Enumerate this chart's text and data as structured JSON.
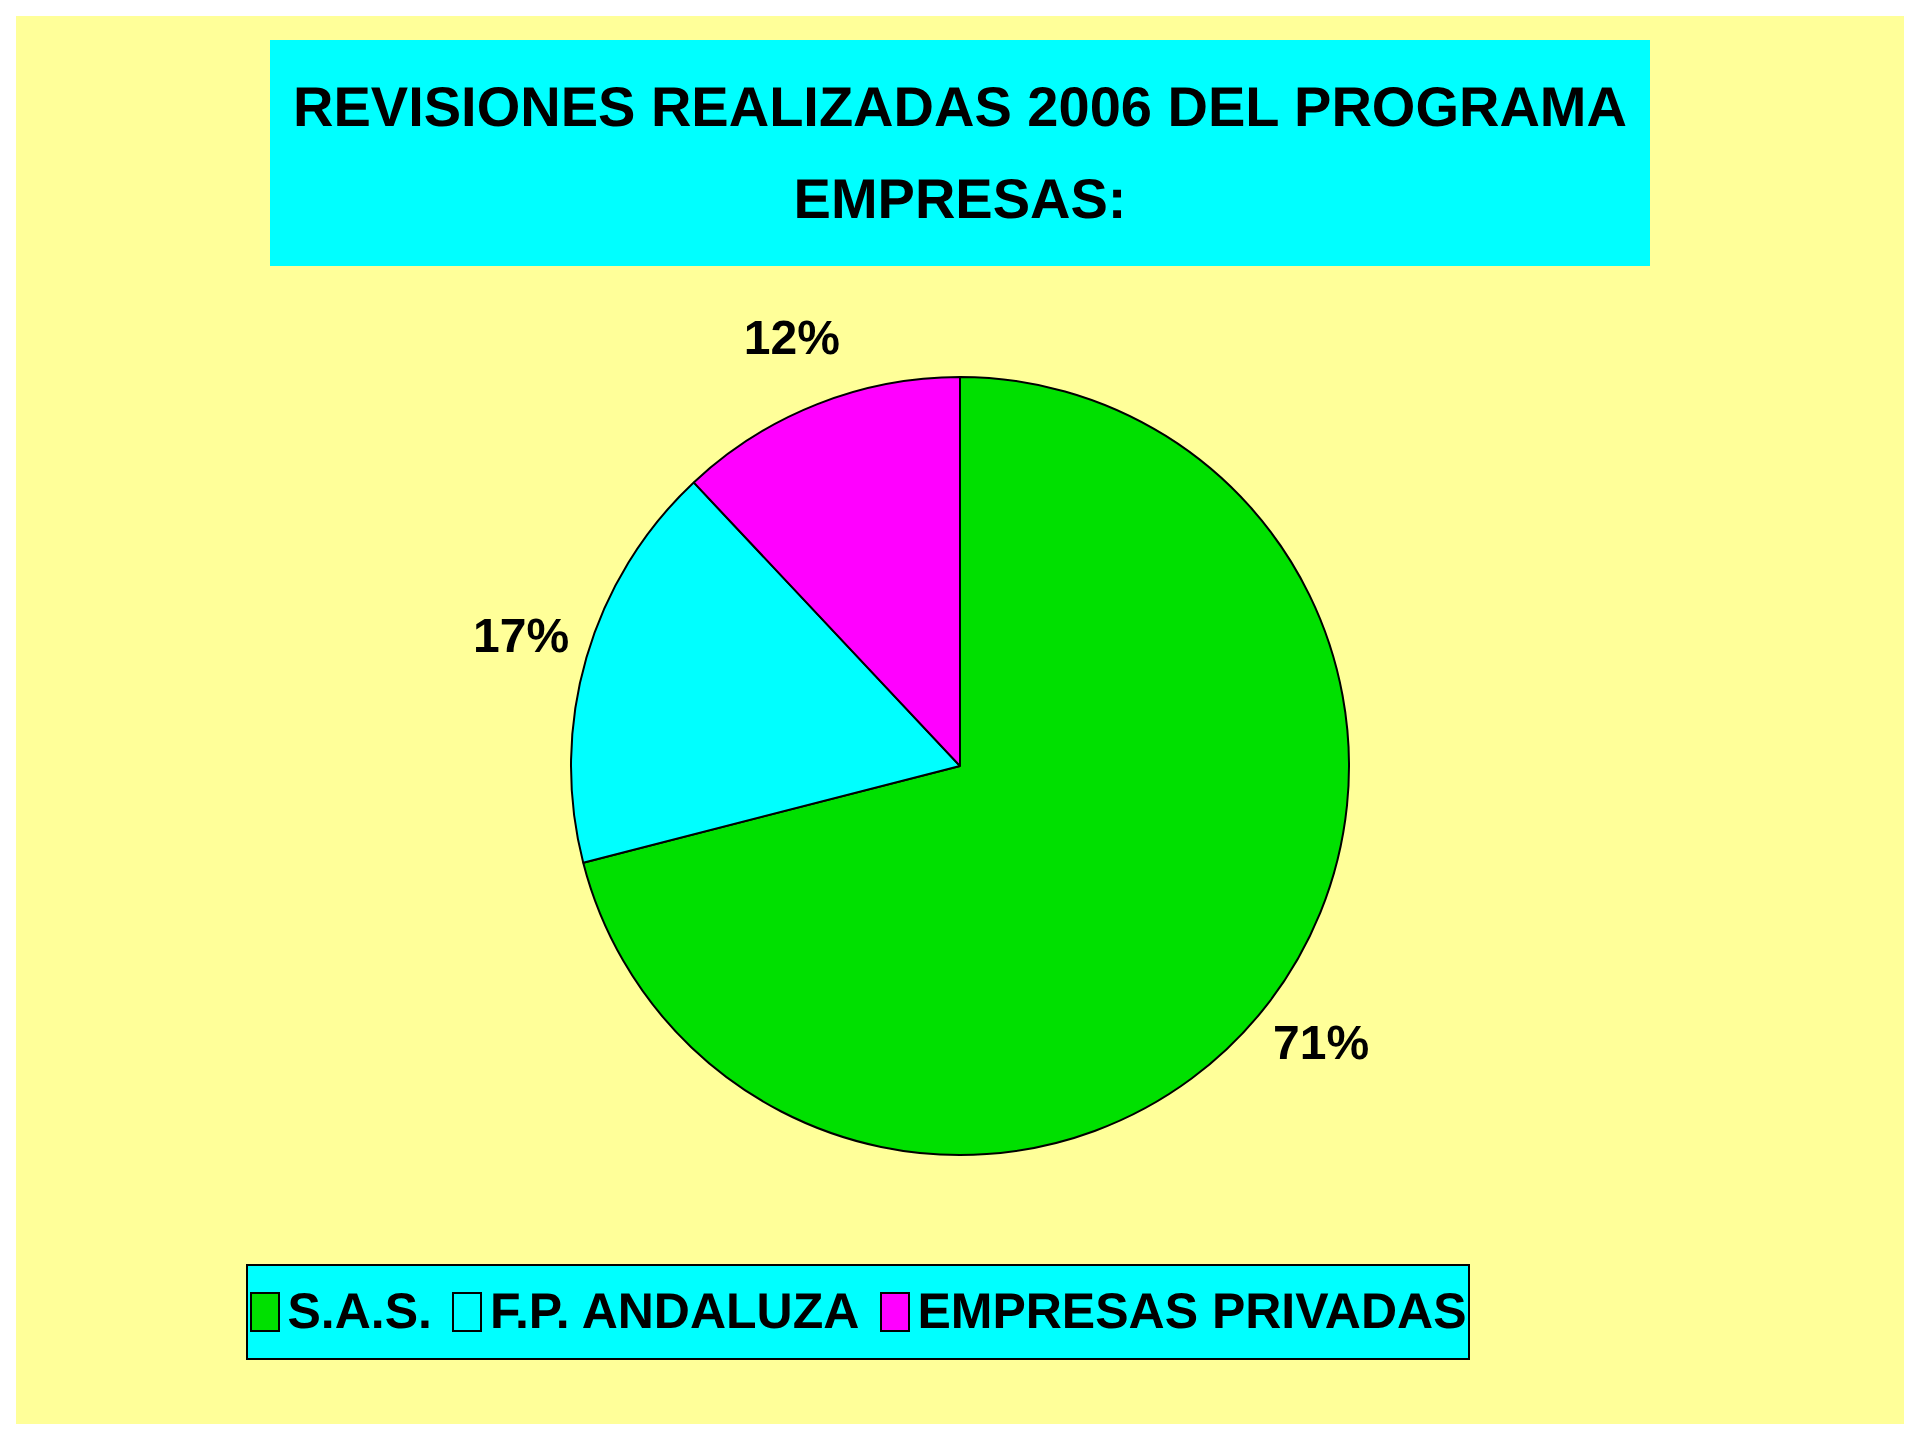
{
  "chart_data": {
    "type": "pie",
    "title": "REVISIONES REALIZADAS 2006 DEL PROGRAMA\nEMPRESAS:",
    "categories": [
      "S.A.S.",
      "F.P. ANDALUZA",
      "EMPRESAS PRIVADAS"
    ],
    "values": [
      71,
      17,
      12
    ],
    "colors": [
      "#00e000",
      "#00ffff",
      "#ff00ff"
    ],
    "value_labels": [
      "71%",
      "17%",
      "12%"
    ],
    "legend": "bottom"
  }
}
